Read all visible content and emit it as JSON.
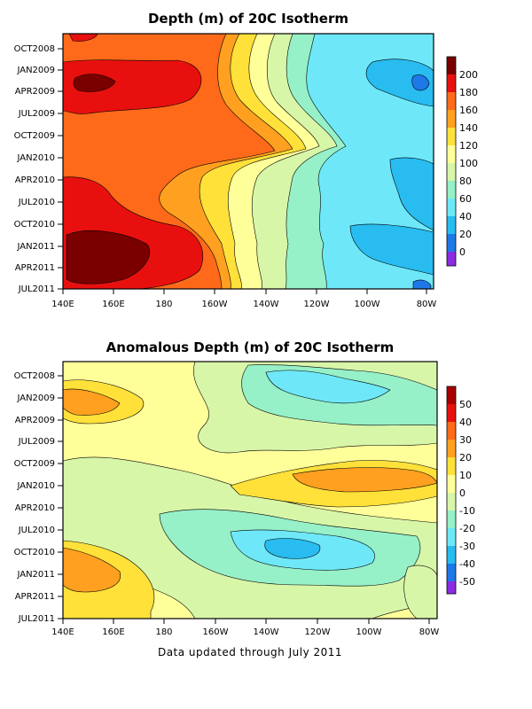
{
  "chart_data": [
    {
      "type": "heatmap",
      "title": "Depth (m) of 20C Isotherm",
      "x_ticks": [
        "140E",
        "160E",
        "180",
        "160W",
        "140W",
        "120W",
        "100W",
        "80W"
      ],
      "y_ticks": [
        "OCT2008",
        "JAN2009",
        "APR2009",
        "JUL2009",
        "OCT2009",
        "JAN2010",
        "APR2010",
        "JUL2010",
        "OCT2010",
        "JAN2011",
        "APR2011",
        "JUL2011"
      ],
      "colorbar_levels": [
        "200",
        "180",
        "160",
        "140",
        "120",
        "100",
        "80",
        "60",
        "40",
        "20",
        "0"
      ],
      "colorbar_colors": [
        "#7a0000",
        "#e8100e",
        "#ff6a1a",
        "#ffa020",
        "#ffe13a",
        "#ffff9a",
        "#d8f6a8",
        "#96f0c8",
        "#6ee8f8",
        "#28bcf0",
        "#1e78e8",
        "#8b2be2"
      ],
      "value_range": [
        0,
        200
      ],
      "contour_interval": 20
    },
    {
      "type": "heatmap",
      "title": "Anomalous Depth (m) of 20C Isotherm",
      "x_ticks": [
        "140E",
        "160E",
        "180",
        "160W",
        "140W",
        "120W",
        "100W",
        "80W"
      ],
      "y_ticks": [
        "OCT2008",
        "JAN2009",
        "APR2009",
        "JUL2009",
        "OCT2009",
        "JAN2010",
        "APR2010",
        "JUL2010",
        "OCT2010",
        "JAN2011",
        "APR2011",
        "JUL2011"
      ],
      "colorbar_levels": [
        "50",
        "40",
        "30",
        "20",
        "10",
        "0",
        "-10",
        "-20",
        "-30",
        "-40",
        "-50"
      ],
      "colorbar_colors": [
        "#a80000",
        "#e8100e",
        "#ff6a1a",
        "#ffa020",
        "#ffe13a",
        "#ffff9a",
        "#d8f6a8",
        "#96f0c8",
        "#6ee8f8",
        "#28bcf0",
        "#1e78e8",
        "#8b2be2"
      ],
      "value_range": [
        -50,
        50
      ],
      "contour_interval": 10
    }
  ],
  "footer": "Data updated through July 2011"
}
